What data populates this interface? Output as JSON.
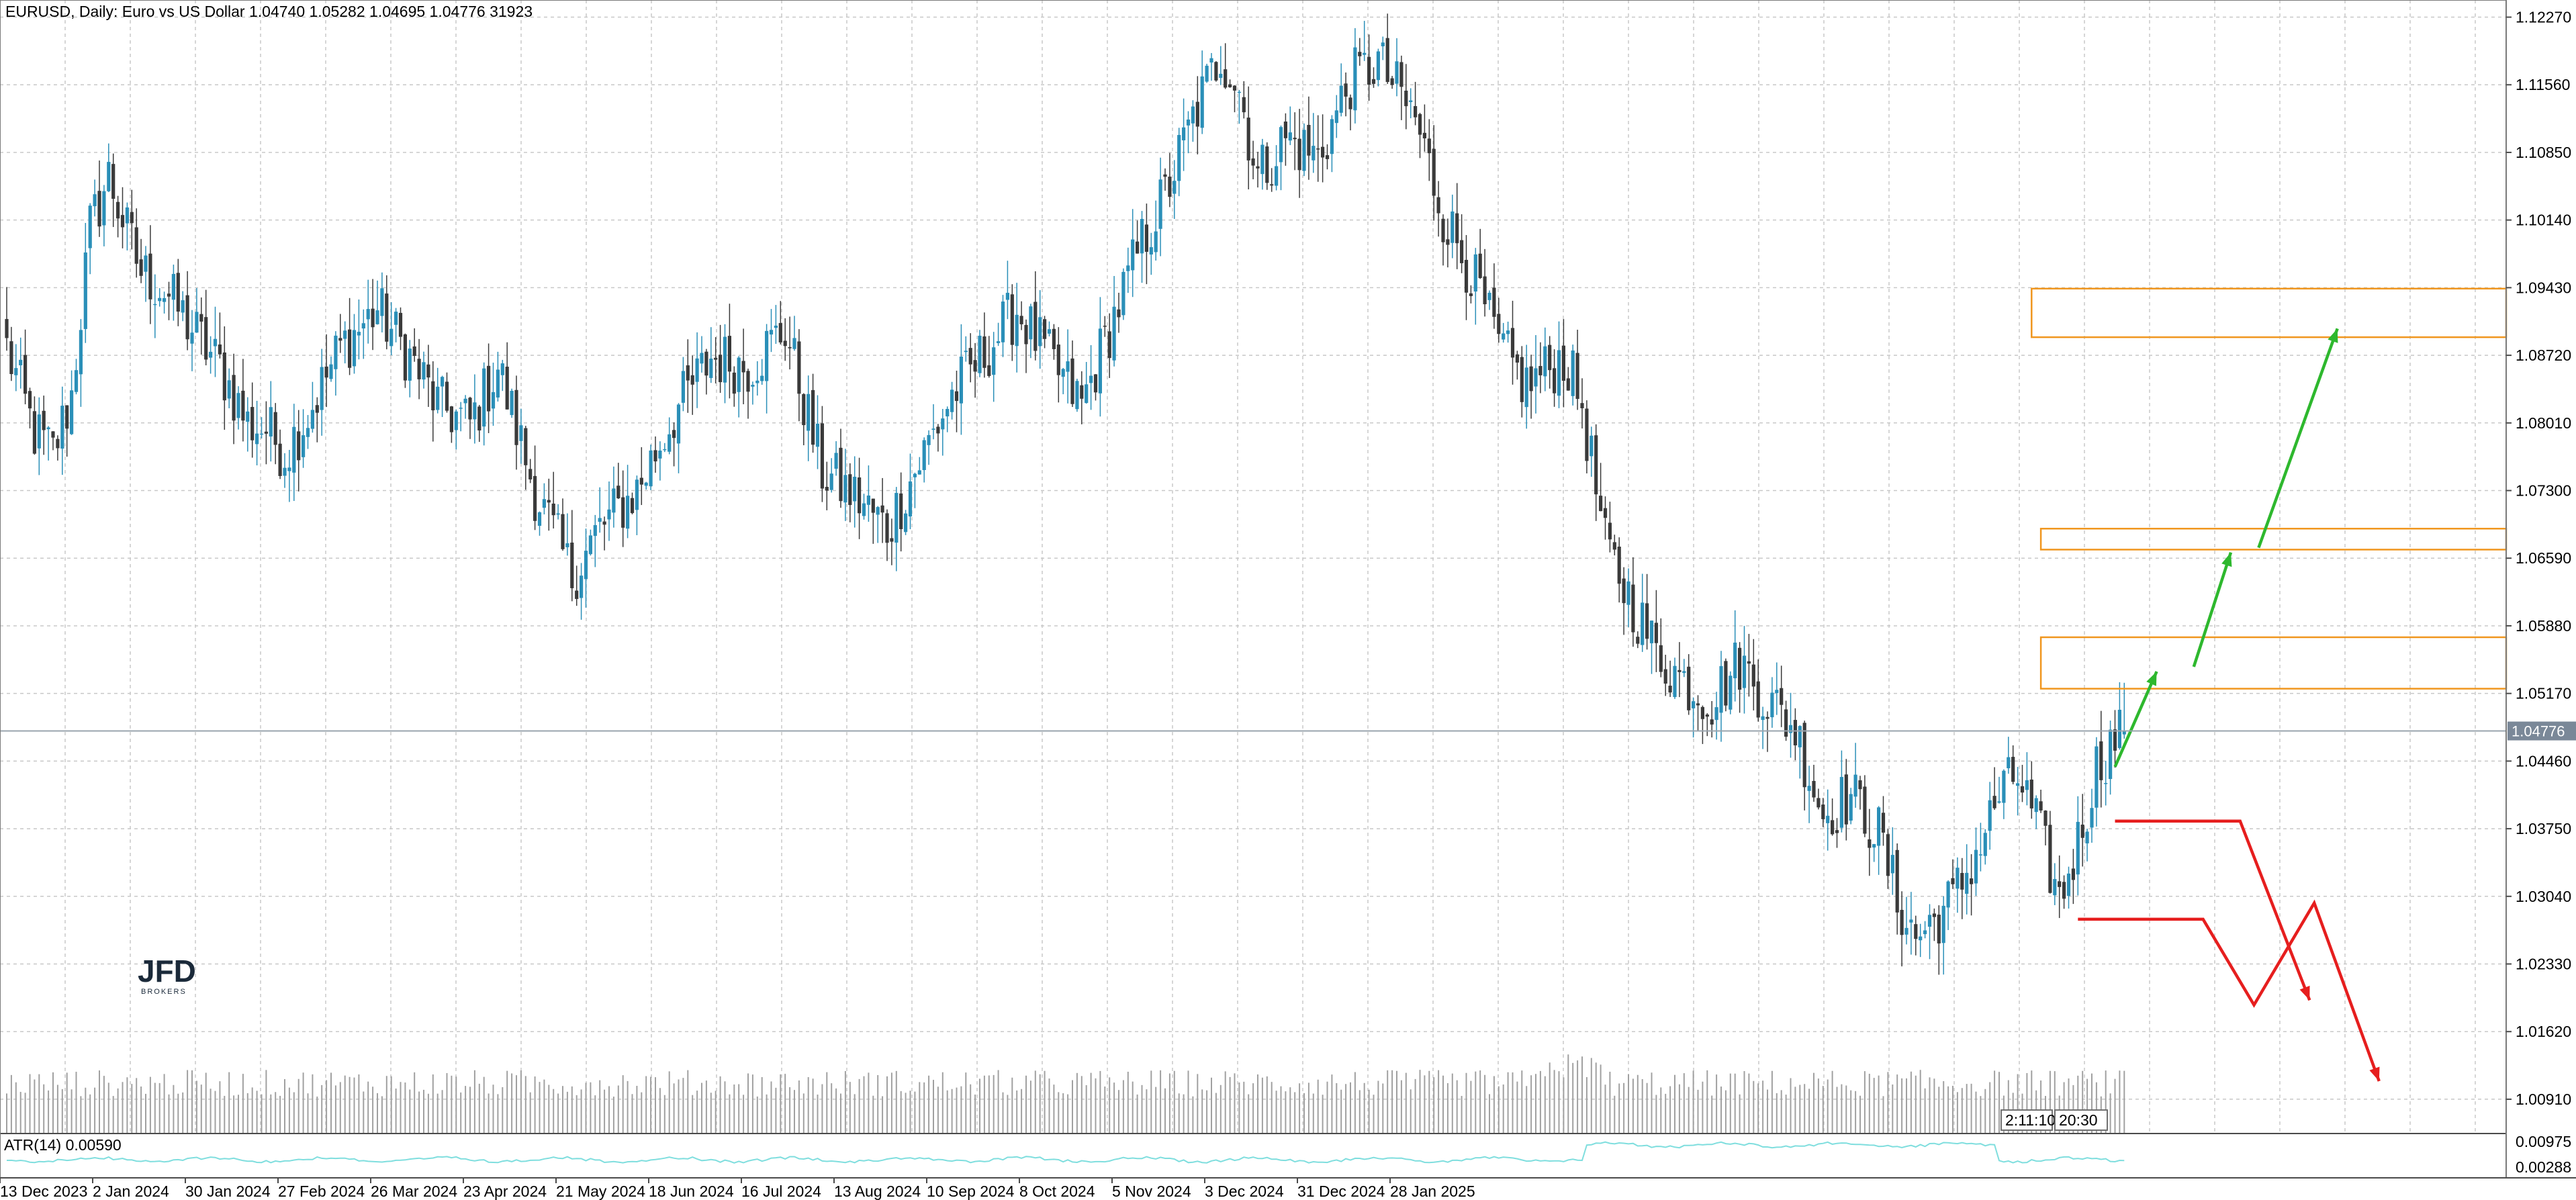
{
  "header": {
    "symbol_line": "EURUSD, Daily:  Euro vs US Dollar  1.04740 1.05282 1.04695 1.04776  31923"
  },
  "logo": {
    "main": "JFD",
    "sub": "BROKERS"
  },
  "indicator": {
    "label": "ATR(14) 0.00590"
  },
  "time_box": {
    "left": "2:11:10",
    "right": "20:30"
  },
  "colors": {
    "bull": "#2a8fb8",
    "bear": "#3a3a3a",
    "grid": "#c8c8c8",
    "zone": "#f0961e",
    "up_arrow": "#2eb82e",
    "down_arrow": "#e61e1e",
    "price_tag": "#7a8898",
    "atr_line": "#7fdede",
    "volume": "#a0a0a0"
  },
  "chart_data": {
    "type": "candlestick",
    "symbol": "EURUSD",
    "timeframe": "Daily",
    "description": "Euro vs US Dollar",
    "last_bar": {
      "open": 1.0474,
      "high": 1.05282,
      "low": 1.04695,
      "close": 1.04776,
      "volume": 31923
    },
    "current_price": 1.04776,
    "price_ticks": [
      "1.12270",
      "1.11560",
      "1.10850",
      "1.10140",
      "1.09430",
      "1.08720",
      "1.08010",
      "1.07300",
      "1.06590",
      "1.05880",
      "1.05170",
      "1.04460",
      "1.03750",
      "1.03040",
      "1.02330",
      "1.01620",
      "1.00910"
    ],
    "ylim": [
      1.0055,
      1.1245
    ],
    "date_ticks": [
      "13 Dec 2023",
      "2 Jan 2024",
      "30 Jan 2024",
      "27 Feb 2024",
      "26 Mar 2024",
      "23 Apr 2024",
      "21 May 2024",
      "18 Jun 2024",
      "16 Jul 2024",
      "13 Aug 2024",
      "10 Sep 2024",
      "8 Oct 2024",
      "5 Nov 2024",
      "3 Dec 2024",
      "31 Dec 2024",
      "28 Jan 2025"
    ],
    "close_path_anchors": [
      [
        0,
        1.088
      ],
      [
        6,
        1.079
      ],
      [
        10,
        1.077
      ],
      [
        14,
        1.083
      ],
      [
        18,
        1.1005
      ],
      [
        22,
        1.106
      ],
      [
        26,
        1.1
      ],
      [
        29,
        1.096
      ],
      [
        34,
        1.094
      ],
      [
        40,
        1.09
      ],
      [
        46,
        1.086
      ],
      [
        52,
        1.08
      ],
      [
        56,
        1.0795
      ],
      [
        60,
        1.077
      ],
      [
        65,
        1.081
      ],
      [
        72,
        1.088
      ],
      [
        80,
        1.092
      ],
      [
        87,
        1.087
      ],
      [
        93,
        1.082
      ],
      [
        100,
        1.08
      ],
      [
        106,
        1.086
      ],
      [
        114,
        1.073
      ],
      [
        122,
        1.064
      ],
      [
        128,
        1.069
      ],
      [
        136,
        1.073
      ],
      [
        144,
        1.081
      ],
      [
        152,
        1.087
      ],
      [
        160,
        1.086
      ],
      [
        168,
        1.09
      ],
      [
        176,
        1.075
      ],
      [
        184,
        1.072
      ],
      [
        190,
        1.069
      ],
      [
        197,
        1.076
      ],
      [
        204,
        1.083
      ],
      [
        212,
        1.088
      ],
      [
        218,
        1.092
      ],
      [
        226,
        1.086
      ],
      [
        232,
        1.082
      ],
      [
        238,
        1.09
      ],
      [
        245,
        1.099
      ],
      [
        250,
        1.104
      ],
      [
        256,
        1.112
      ],
      [
        262,
        1.119
      ],
      [
        266,
        1.115
      ],
      [
        270,
        1.106
      ],
      [
        276,
        1.11
      ],
      [
        283,
        1.108
      ],
      [
        290,
        1.116
      ],
      [
        296,
        1.118
      ],
      [
        304,
        1.112
      ],
      [
        310,
        1.102
      ],
      [
        316,
        1.096
      ],
      [
        322,
        1.088
      ],
      [
        328,
        1.084
      ],
      [
        336,
        1.087
      ],
      [
        340,
        1.082
      ],
      [
        345,
        1.067
      ],
      [
        350,
        1.062
      ],
      [
        356,
        1.056
      ],
      [
        362,
        1.053
      ],
      [
        368,
        1.051
      ],
      [
        374,
        1.055
      ],
      [
        380,
        1.051
      ],
      [
        386,
        1.048
      ],
      [
        392,
        1.039
      ],
      [
        398,
        1.041
      ],
      [
        404,
        1.037
      ],
      [
        408,
        1.03
      ],
      [
        412,
        1.026
      ],
      [
        416,
        1.028
      ],
      [
        420,
        1.03
      ],
      [
        426,
        1.036
      ],
      [
        430,
        1.041
      ],
      [
        434,
        1.043
      ],
      [
        438,
        1.038
      ],
      [
        443,
        1.03
      ],
      [
        447,
        1.036
      ],
      [
        451,
        1.044
      ],
      [
        455,
        1.047
      ],
      [
        457,
        1.0478
      ]
    ],
    "annotations": {
      "resistance_zones": [
        {
          "from_bar": 437,
          "price_top": 1.0942,
          "price_bottom": 1.0891
        },
        {
          "from_bar": 439,
          "price_top": 1.069,
          "price_bottom": 1.0668
        },
        {
          "from_bar": 439,
          "price_top": 1.0576,
          "price_bottom": 1.0522
        }
      ],
      "bull_path": [
        [
          455,
          1.044
        ],
        [
          464,
          1.054
        ],
        [
          472,
          1.0545
        ],
        [
          480,
          1.0665
        ],
        [
          486,
          1.067
        ],
        [
          503,
          1.09
        ]
      ],
      "bear_path_1": [
        [
          455,
          1.0383
        ],
        [
          482,
          1.0383
        ],
        [
          497,
          1.0195
        ]
      ],
      "bear_path_2": [
        [
          447,
          1.028
        ],
        [
          474,
          1.028
        ],
        [
          485,
          1.019
        ],
        [
          498,
          1.0297
        ],
        [
          512,
          1.011
        ]
      ]
    },
    "atr_value": "0.00590",
    "atr_ticks": [
      "0.00975",
      "0.00288"
    ]
  }
}
